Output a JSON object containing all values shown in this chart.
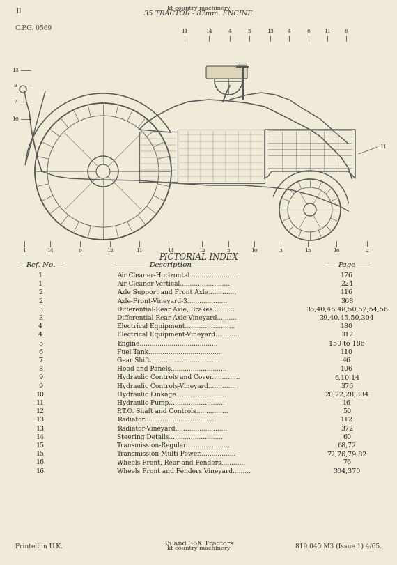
{
  "page_bg": "#f0ead8",
  "header_left": "II",
  "header_center_line1": "kt country machinery",
  "header_center_line2": "35 TRACTOR - 87mm. ENGINE",
  "cpg_text": "C.P.G. 0569",
  "section_title": "PICTORIAL INDEX",
  "col_headers": [
    "Ref. No.",
    "Description",
    "Page"
  ],
  "table_rows": [
    [
      "1",
      "Air Cleaner-Horizontal........................",
      "176"
    ],
    [
      "1",
      "Air Cleaner-Vertical.........................",
      "224"
    ],
    [
      "2",
      "Axle Support and Front Axle..............",
      "116"
    ],
    [
      "2",
      "Axle-Front-Vineyard-3....................",
      "368"
    ],
    [
      "3",
      "Differential-Rear Axle, Brakes...........",
      "35,40,46,48,50,52,54,56"
    ],
    [
      "3",
      "Differential-Rear Axle-Vineyard..........",
      "39,40,45,50,304"
    ],
    [
      "4",
      "Electrical Equipment.........................",
      "180"
    ],
    [
      "4",
      "Electrical Equipment-Vineyard............",
      "312"
    ],
    [
      "5",
      "Engine.......................................",
      "150 to 186"
    ],
    [
      "6",
      "Fuel Tank....................................",
      "110"
    ],
    [
      "7",
      "Gear Shift...................................",
      "46"
    ],
    [
      "8",
      "Hood and Panels............................",
      "106"
    ],
    [
      "9",
      "Hydraulic Controls and Cover..............",
      "6,10,14"
    ],
    [
      "9",
      "Hydraulic Controls-Vineyard..............",
      "376"
    ],
    [
      "10",
      "Hydraulic Linkage.........................",
      "20,22,28,334"
    ],
    [
      "11",
      "Hydraulic Pump............................",
      "16"
    ],
    [
      "12",
      "P.T.O. Shaft and Controls................",
      "50"
    ],
    [
      "13",
      "Radiator....................................",
      "112"
    ],
    [
      "13",
      "Radiator-Vineyard..........................",
      "372"
    ],
    [
      "14",
      "Steering Details...........................",
      "60"
    ],
    [
      "15",
      "Transmission-Regular......................",
      "68,72"
    ],
    [
      "15",
      "Transmission-Multi-Power..................",
      "72,76,79,82"
    ],
    [
      "16",
      "Wheels Front, Rear and Fenders............",
      "76"
    ],
    [
      "16",
      "Wheels Front and Fenders Vineyard.........",
      "304,370"
    ]
  ],
  "footer_left": "Printed in U.K.",
  "footer_center_line1": "35 and 35X Tractors",
  "footer_center_line2": "kt country machinery",
  "footer_right": "819 045 M3 (Issue 1) 4/65."
}
